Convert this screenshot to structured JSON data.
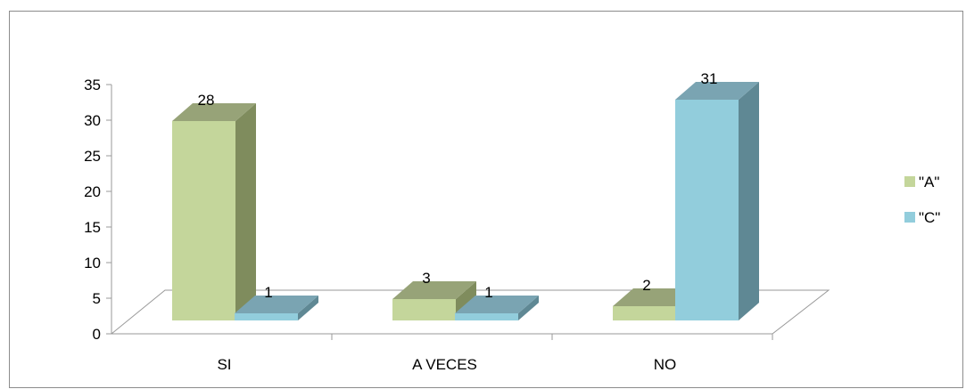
{
  "chart_data": {
    "type": "bar",
    "style": "3d-clustered-column",
    "categories": [
      "SI",
      "A VECES",
      "NO"
    ],
    "series": [
      {
        "name": "\"A\"",
        "values": [
          28,
          3,
          2
        ],
        "color": "#c4d69b",
        "side_color": "#7f8c5d",
        "top_color": "#97a378"
      },
      {
        "name": "\"C\"",
        "values": [
          1,
          1,
          31
        ],
        "color": "#92cddc",
        "side_color": "#5f8894",
        "top_color": "#7aa4b2"
      }
    ],
    "yticks": [
      "0",
      "5",
      "10",
      "15",
      "20",
      "25",
      "30",
      "35"
    ],
    "ylim": [
      0,
      35
    ],
    "title": "",
    "xlabel": "",
    "ylabel": "",
    "legend_position": "right",
    "grid": false
  }
}
